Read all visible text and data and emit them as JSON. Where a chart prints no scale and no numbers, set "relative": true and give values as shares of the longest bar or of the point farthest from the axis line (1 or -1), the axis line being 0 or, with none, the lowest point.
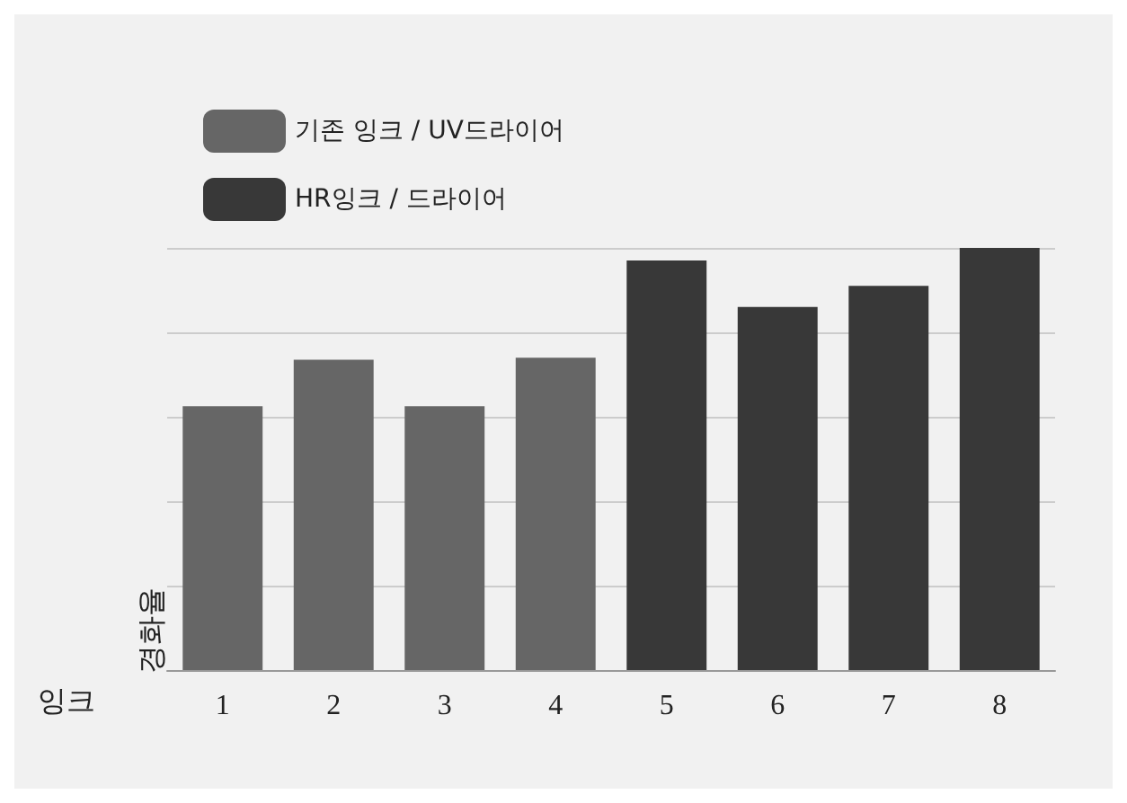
{
  "chart_data": {
    "type": "bar",
    "relative": true,
    "xlabel": "잉크",
    "ylabel": "경화율",
    "categories": [
      "1",
      "2",
      "3",
      "4",
      "5",
      "6",
      "7",
      "8"
    ],
    "series": [
      {
        "name": "기존 잉크 / UV드라이어",
        "color": "#666666",
        "values": [
          0.625,
          0.735,
          0.625,
          0.74,
          null,
          null,
          null,
          null
        ]
      },
      {
        "name": "HR잉크 / 드라이어",
        "color": "#383838",
        "values": [
          null,
          null,
          null,
          null,
          0.97,
          0.86,
          0.91,
          1
        ]
      }
    ],
    "grid": "y",
    "legend": "top left"
  }
}
